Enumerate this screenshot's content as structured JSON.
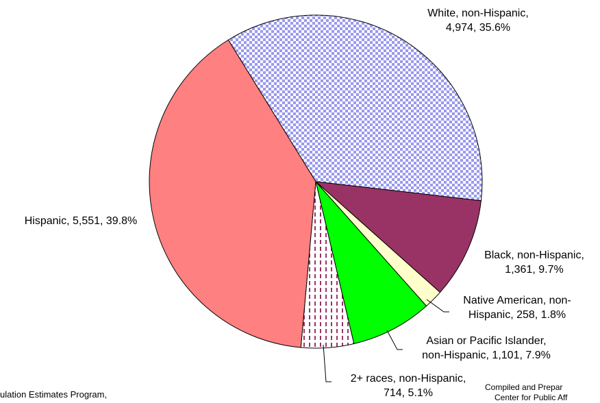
{
  "chart_data": {
    "type": "pie",
    "title": "",
    "slices": [
      {
        "name": "White, non-Hispanic,",
        "value_text": "4,974, 35.6%",
        "value": 4974,
        "percent": 35.6,
        "color": "#a9a9f5",
        "pattern": "checker"
      },
      {
        "name": "Black, non-Hispanic,",
        "value_text": "1,361, 9.7%",
        "value": 1361,
        "percent": 9.7,
        "color": "#993366",
        "pattern": "solid"
      },
      {
        "name": "Native American, non-",
        "value_text": "Hispanic, 258, 1.8%",
        "value": 258,
        "percent": 1.8,
        "color": "#ffffcc",
        "pattern": "solid"
      },
      {
        "name": "Asian or Pacific Islander,",
        "value_text": "non-Hispanic, 1,101, 7.9%",
        "value": 1101,
        "percent": 7.9,
        "color": "#00ff00",
        "pattern": "solid"
      },
      {
        "name": "2+ races, non-Hispanic,",
        "value_text": "714, 5.1%",
        "value": 714,
        "percent": 5.1,
        "color": "#993366",
        "pattern": "dashes"
      },
      {
        "name": "Hispanic, 5,551, 39.8%",
        "value_text": "",
        "value": 5551,
        "percent": 39.8,
        "color": "#ff8080",
        "pattern": "solid"
      }
    ]
  },
  "footnotes": {
    "left": "ulation Estimates Program,",
    "right_1": "Compiled and Prepar",
    "right_2": "Center for Public Aff"
  }
}
